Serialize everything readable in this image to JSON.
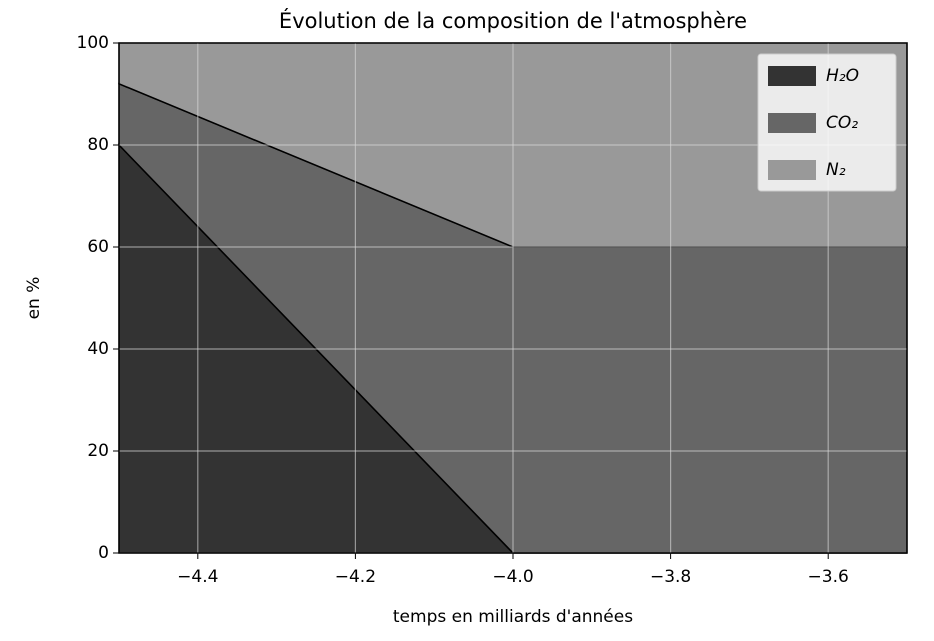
{
  "chart_data": {
    "type": "stackedarea",
    "title": "Évolution de la composition de l'atmosphère",
    "xlabel": "temps en milliards d'années",
    "ylabel": "en %",
    "x": [
      -4.5,
      -4.0,
      -3.5
    ],
    "series": [
      {
        "name": "H₂O",
        "color": "#333333",
        "values": [
          80,
          0,
          0
        ]
      },
      {
        "name": "CO₂",
        "color": "#666666",
        "values": [
          12,
          60,
          60
        ]
      },
      {
        "name": "N₂",
        "color": "#999999",
        "values": [
          8,
          40,
          40
        ]
      }
    ],
    "xlim": [
      -4.5,
      -3.5
    ],
    "xticks": [
      {
        "value": -4.4,
        "label": "−4.4"
      },
      {
        "value": -4.2,
        "label": "−4.2"
      },
      {
        "value": -4.0,
        "label": "−4.0"
      },
      {
        "value": -3.8,
        "label": "−3.8"
      },
      {
        "value": -3.6,
        "label": "−3.6"
      }
    ],
    "ylim": [
      0,
      100
    ],
    "yticks": [
      0,
      20,
      40,
      60,
      80,
      100
    ],
    "grid": true,
    "legend": "upper right"
  }
}
